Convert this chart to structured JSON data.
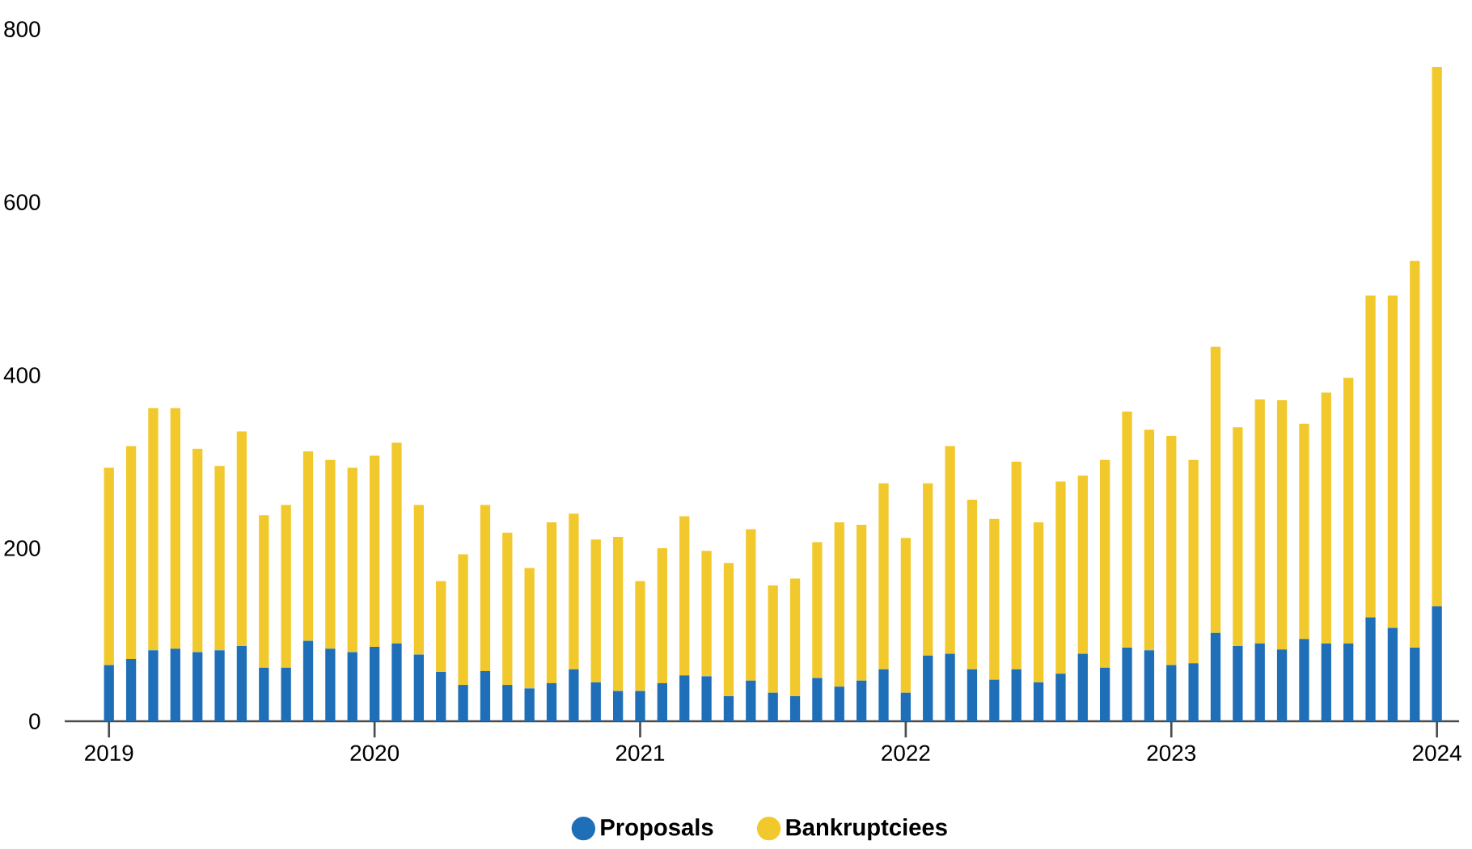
{
  "chart_data": {
    "type": "bar",
    "stacked": true,
    "x": [
      "2019-01",
      "2019-02",
      "2019-03",
      "2019-04",
      "2019-05",
      "2019-06",
      "2019-07",
      "2019-08",
      "2019-09",
      "2019-10",
      "2019-11",
      "2019-12",
      "2020-01",
      "2020-02",
      "2020-03",
      "2020-04",
      "2020-05",
      "2020-06",
      "2020-07",
      "2020-08",
      "2020-09",
      "2020-10",
      "2020-11",
      "2020-12",
      "2021-01",
      "2021-02",
      "2021-03",
      "2021-04",
      "2021-05",
      "2021-06",
      "2021-07",
      "2021-08",
      "2021-09",
      "2021-10",
      "2021-11",
      "2021-12",
      "2022-01",
      "2022-02",
      "2022-03",
      "2022-04",
      "2022-05",
      "2022-06",
      "2022-07",
      "2022-08",
      "2022-09",
      "2022-10",
      "2022-11",
      "2022-12",
      "2023-01",
      "2023-02",
      "2023-03",
      "2023-04",
      "2023-05",
      "2023-06",
      "2023-07",
      "2023-08",
      "2023-09",
      "2023-10",
      "2023-11",
      "2023-12",
      "2024-01"
    ],
    "series": [
      {
        "name": "Proposals",
        "color": "#1f6fb8",
        "values": [
          65,
          72,
          82,
          84,
          80,
          82,
          87,
          62,
          62,
          93,
          84,
          80,
          86,
          90,
          77,
          57,
          42,
          58,
          42,
          38,
          44,
          60,
          45,
          35,
          35,
          44,
          53,
          52,
          29,
          47,
          33,
          29,
          50,
          40,
          47,
          60,
          33,
          76,
          78,
          60,
          48,
          60,
          45,
          55,
          78,
          62,
          85,
          82,
          65,
          67,
          102,
          87,
          90,
          83,
          95,
          90,
          90,
          120,
          108,
          85,
          133
        ]
      },
      {
        "name": "Bankruptciees",
        "color": "#f2c92c",
        "values": [
          228,
          246,
          280,
          278,
          235,
          213,
          248,
          176,
          188,
          219,
          218,
          213,
          221,
          232,
          173,
          105,
          151,
          192,
          176,
          139,
          186,
          180,
          165,
          178,
          127,
          156,
          184,
          145,
          154,
          175,
          124,
          136,
          157,
          190,
          180,
          215,
          179,
          199,
          240,
          196,
          186,
          240,
          185,
          222,
          206,
          240,
          273,
          255,
          265,
          235,
          331,
          253,
          282,
          288,
          249,
          290,
          307,
          372,
          384,
          447,
          623
        ]
      }
    ],
    "xlim": [
      "2018-11",
      "2024-02"
    ],
    "xticks": [
      {
        "value": "2019-01",
        "label": "2019"
      },
      {
        "value": "2020-01",
        "label": "2020"
      },
      {
        "value": "2021-01",
        "label": "2021"
      },
      {
        "value": "2022-01",
        "label": "2022"
      },
      {
        "value": "2023-01",
        "label": "2023"
      },
      {
        "value": "2024-01",
        "label": "2024"
      }
    ],
    "ylim": [
      0,
      800
    ],
    "yticks": [
      0,
      200,
      400,
      600,
      800
    ],
    "grid": false,
    "legend": "bottom"
  }
}
